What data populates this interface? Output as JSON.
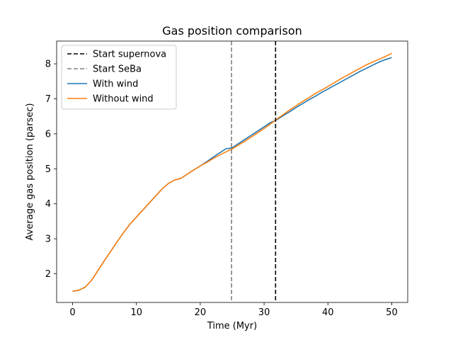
{
  "chart_data": {
    "type": "line",
    "title": "Gas position comparison",
    "xlabel": "Time (Myr)",
    "ylabel": "Average gas position (parsec)",
    "xlim": [
      -2.5,
      52.5
    ],
    "ylim": [
      1.18,
      8.65
    ],
    "xticks": [
      0,
      10,
      20,
      30,
      40,
      50
    ],
    "yticks": [
      2,
      3,
      4,
      5,
      6,
      7,
      8
    ],
    "grid": false,
    "legend_position": "upper-left",
    "vlines": [
      {
        "name": "Start supernova",
        "x": 31.8,
        "color": "#000000",
        "style": "dashed"
      },
      {
        "name": "Start SeBa",
        "x": 24.9,
        "color": "#808080",
        "style": "dashed"
      }
    ],
    "series": [
      {
        "name": "With wind",
        "color": "#1f77b4",
        "x": [
          0,
          1,
          2,
          3,
          4,
          5,
          6,
          7,
          8,
          9,
          10,
          11,
          12,
          13,
          14,
          15,
          16,
          17,
          18,
          19,
          20,
          21,
          22,
          23,
          24,
          25,
          26,
          27,
          28,
          29,
          30,
          31,
          32,
          33,
          34,
          35,
          36,
          37,
          38,
          39,
          40,
          41,
          42,
          43,
          44,
          45,
          46,
          47,
          48,
          49,
          50
        ],
        "values": [
          1.5,
          1.53,
          1.62,
          1.82,
          2.1,
          2.38,
          2.65,
          2.92,
          3.18,
          3.42,
          3.62,
          3.82,
          4.02,
          4.22,
          4.42,
          4.58,
          4.68,
          4.73,
          4.85,
          4.97,
          5.08,
          5.2,
          5.33,
          5.45,
          5.57,
          5.6,
          5.72,
          5.84,
          5.96,
          6.08,
          6.2,
          6.32,
          6.4,
          6.52,
          6.63,
          6.75,
          6.86,
          6.97,
          7.07,
          7.18,
          7.28,
          7.38,
          7.48,
          7.58,
          7.68,
          7.78,
          7.87,
          7.96,
          8.05,
          8.12,
          8.18
        ]
      },
      {
        "name": "Without wind",
        "color": "#ff7f0e",
        "x": [
          0,
          1,
          2,
          3,
          4,
          5,
          6,
          7,
          8,
          9,
          10,
          11,
          12,
          13,
          14,
          15,
          16,
          17,
          18,
          19,
          20,
          21,
          22,
          23,
          24,
          25,
          26,
          27,
          28,
          29,
          30,
          31,
          32,
          33,
          34,
          35,
          36,
          37,
          38,
          39,
          40,
          41,
          42,
          43,
          44,
          45,
          46,
          47,
          48,
          49,
          50
        ],
        "values": [
          1.5,
          1.53,
          1.62,
          1.82,
          2.1,
          2.38,
          2.65,
          2.92,
          3.18,
          3.42,
          3.62,
          3.82,
          4.02,
          4.22,
          4.42,
          4.58,
          4.68,
          4.73,
          4.85,
          4.97,
          5.08,
          5.18,
          5.29,
          5.39,
          5.48,
          5.57,
          5.68,
          5.79,
          5.91,
          6.03,
          6.15,
          6.28,
          6.42,
          6.55,
          6.68,
          6.8,
          6.92,
          7.03,
          7.15,
          7.25,
          7.35,
          7.46,
          7.57,
          7.67,
          7.77,
          7.87,
          7.97,
          8.05,
          8.13,
          8.21,
          8.3
        ]
      }
    ]
  }
}
